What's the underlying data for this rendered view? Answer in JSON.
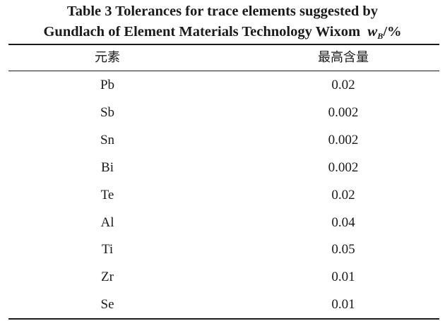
{
  "caption": {
    "line1": "Table 3 Tolerances for trace elements suggested by",
    "line2": "Gundlach of Element Materials Technology Wixom",
    "unit_w": "w",
    "unit_sub": "B",
    "unit_suffix": "/%"
  },
  "table": {
    "headers": [
      "元素",
      "最高含量"
    ],
    "rows": [
      {
        "element": "Pb",
        "max": "0.02"
      },
      {
        "element": "Sb",
        "max": "0.002"
      },
      {
        "element": "Sn",
        "max": "0.002"
      },
      {
        "element": "Bi",
        "max": "0.002"
      },
      {
        "element": "Te",
        "max": "0.02"
      },
      {
        "element": "Al",
        "max": "0.04"
      },
      {
        "element": "Ti",
        "max": "0.05"
      },
      {
        "element": "Zr",
        "max": "0.01"
      },
      {
        "element": "Se",
        "max": "0.01"
      }
    ]
  }
}
